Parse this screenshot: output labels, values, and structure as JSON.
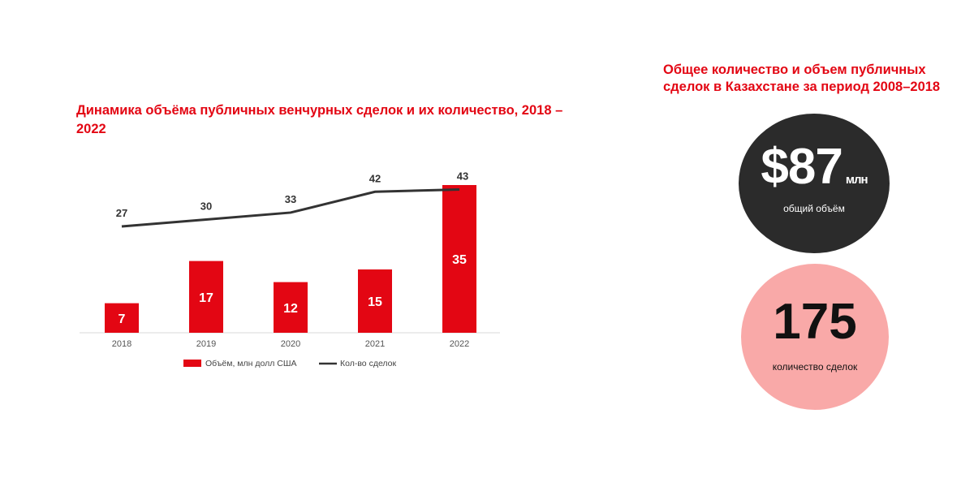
{
  "left_panel": {
    "title": "Динамика объёма публичных венчурных сделок и их количество, 2018 – 2022"
  },
  "right_panel": {
    "title": "Общее количество и объем публичных сделок в Казахстане за период 2008–2018",
    "volume": {
      "value": "$87",
      "unit": "млн",
      "caption": "общий объём"
    },
    "count": {
      "value": "175",
      "caption": "количество сделок"
    }
  },
  "chart_data": {
    "type": "bar",
    "categories": [
      "2018",
      "2019",
      "2020",
      "2021",
      "2022"
    ],
    "series": [
      {
        "name": "Объём, млн долл США",
        "type": "bar",
        "values": [
          7,
          17,
          12,
          15,
          35
        ],
        "color": "#e30613"
      },
      {
        "name": "Кол-во сделок",
        "type": "line",
        "values": [
          27,
          30,
          33,
          42,
          43
        ],
        "color": "#333333"
      }
    ],
    "legend_position": "bottom",
    "grid": false
  }
}
